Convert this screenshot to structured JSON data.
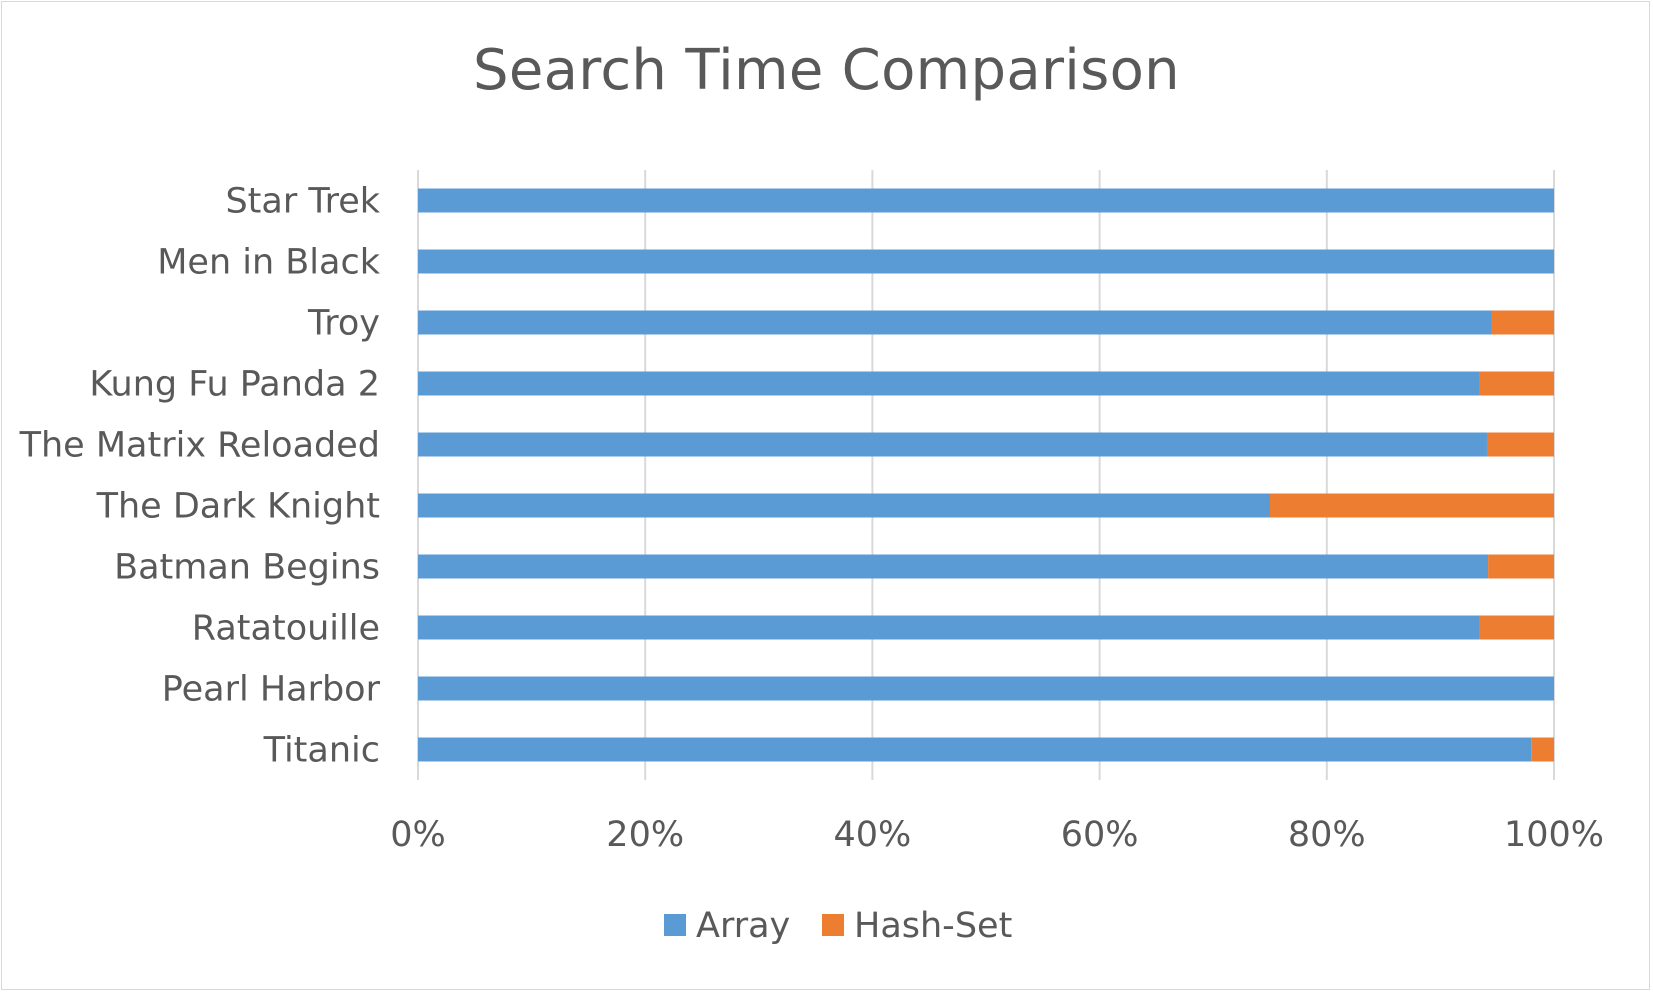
{
  "chart_data": {
    "type": "bar",
    "orientation": "horizontal",
    "stacking": "percent",
    "title": "Search Time Comparison",
    "categories": [
      "Star Trek",
      "Men in Black",
      "Troy",
      "Kung Fu Panda 2",
      "The Matrix Reloaded",
      "The Dark Knight",
      "Batman Begins",
      "Ratatouille",
      "Pearl Harbor",
      "Titanic"
    ],
    "series": [
      {
        "name": "Array",
        "color": "#5b9bd5",
        "values": [
          100,
          100,
          94.5,
          93.4,
          94.1,
          75.0,
          94.2,
          93.4,
          100,
          98.0
        ]
      },
      {
        "name": "Hash-Set",
        "color": "#ed7d31",
        "values": [
          0,
          0,
          5.5,
          6.6,
          5.9,
          25.0,
          5.8,
          6.6,
          0,
          2.0
        ]
      }
    ],
    "xlim": [
      0,
      100
    ],
    "x_ticks": [
      "0%",
      "20%",
      "40%",
      "60%",
      "80%",
      "100%"
    ],
    "grid": true,
    "legend": "bottom",
    "xlabel": "",
    "ylabel": ""
  }
}
